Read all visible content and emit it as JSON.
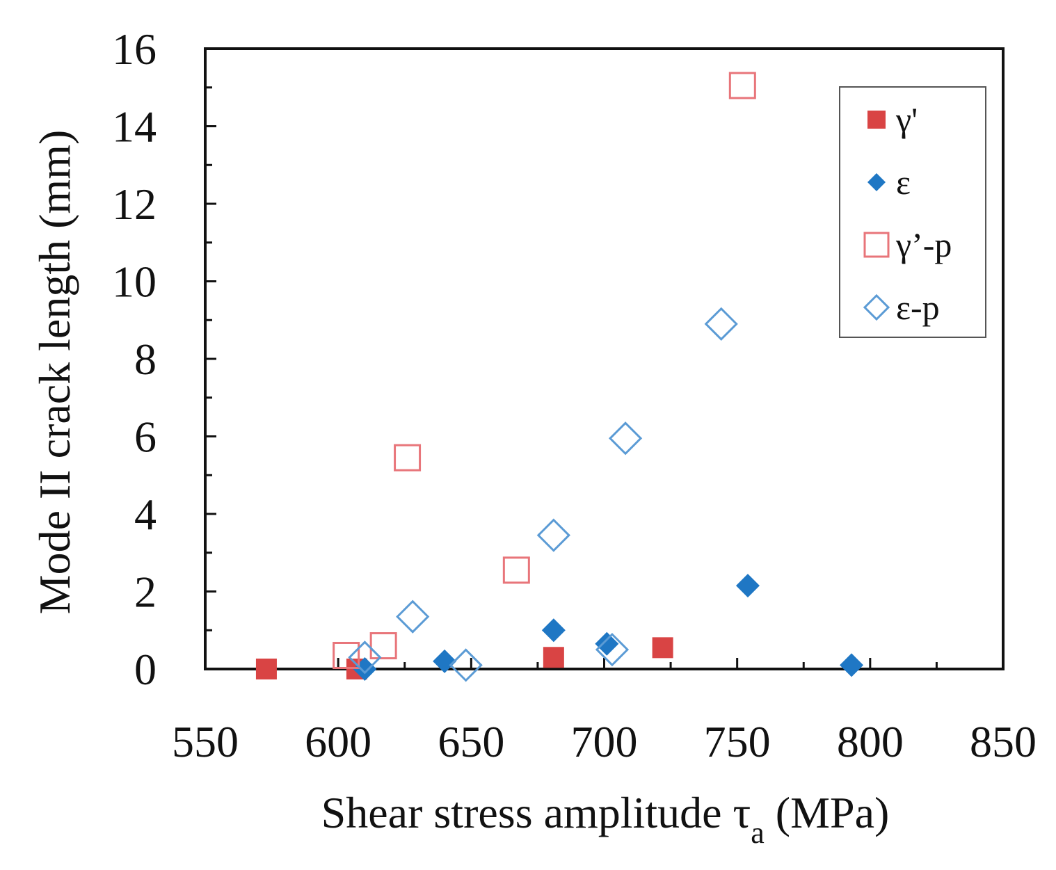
{
  "chart_data": {
    "type": "scatter",
    "title": "",
    "xlabel": {
      "main": "Shear stress amplitude τ",
      "subscript": "a",
      "suffix": " (MPa)"
    },
    "ylabel": "Mode II crack length (mm)",
    "xlim": [
      550,
      850
    ],
    "ylim": [
      0,
      16
    ],
    "xticks": [
      550,
      600,
      650,
      700,
      750,
      800,
      850
    ],
    "yticks": [
      0,
      2,
      4,
      6,
      8,
      10,
      12,
      14,
      16
    ],
    "grid": false,
    "legend_position": "top-right",
    "series": [
      {
        "name": "γ'",
        "marker": "square",
        "filled": true,
        "color": "#d94444",
        "points": [
          [
            573,
            0.0
          ],
          [
            607,
            0.0
          ],
          [
            681,
            0.3
          ],
          [
            722,
            0.55
          ]
        ]
      },
      {
        "name": "ε",
        "marker": "diamond",
        "filled": true,
        "color": "#1f77c4",
        "points": [
          [
            610,
            0.0
          ],
          [
            640,
            0.2
          ],
          [
            681,
            1.0
          ],
          [
            701,
            0.65
          ],
          [
            754,
            2.15
          ],
          [
            793,
            0.1
          ]
        ]
      },
      {
        "name": "γ’-p",
        "marker": "square",
        "filled": false,
        "color": "#e8757a",
        "points": [
          [
            603,
            0.35
          ],
          [
            617,
            0.6
          ],
          [
            626,
            5.45
          ],
          [
            667,
            2.55
          ],
          [
            752,
            15.05
          ]
        ]
      },
      {
        "name": "ε-p",
        "marker": "diamond",
        "filled": false,
        "color": "#5b9bd5",
        "points": [
          [
            610,
            0.3
          ],
          [
            628,
            1.35
          ],
          [
            648,
            0.1
          ],
          [
            681,
            3.45
          ],
          [
            703,
            0.5
          ],
          [
            708,
            5.95
          ],
          [
            744,
            8.9
          ]
        ]
      }
    ]
  }
}
